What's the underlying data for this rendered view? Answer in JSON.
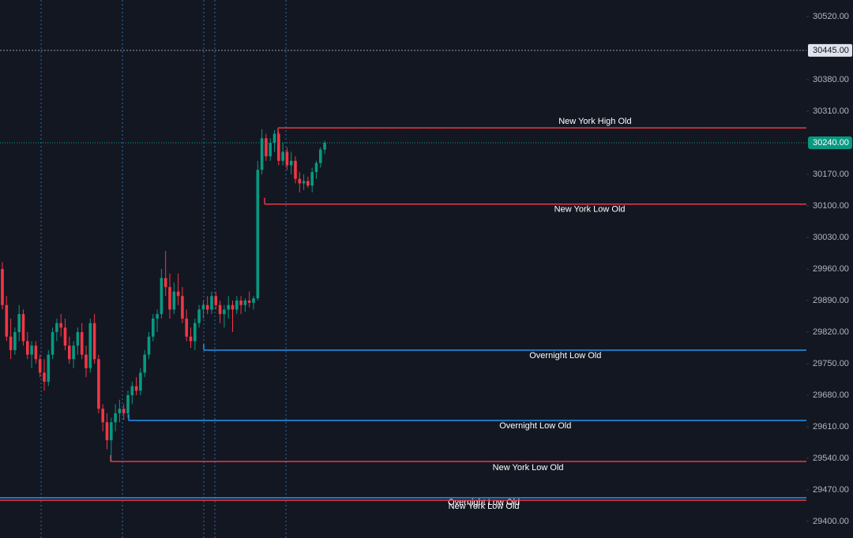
{
  "chart_data": {
    "type": "candlestick",
    "up_color": "#089981",
    "down_color": "#f23645",
    "open": [
      29960,
      29880,
      29810,
      29780,
      29820,
      29860,
      29800,
      29770,
      29790,
      29760,
      29730,
      29710,
      29770,
      29820,
      29840,
      29830,
      29790,
      29760,
      29790,
      29820,
      29770,
      29740,
      29840,
      29760,
      29650,
      29620,
      29580,
      29620,
      29640,
      29650,
      29640,
      29680,
      29700,
      29690,
      29730,
      29770,
      29810,
      29850,
      29860,
      29940,
      29920,
      29870,
      29910,
      29900,
      29850,
      29810,
      29800,
      29840,
      29870,
      29880,
      29870,
      29900,
      29880,
      29860,
      29870,
      29880,
      29870,
      29890,
      29880,
      29890,
      29885,
      29895,
      30180,
      30250,
      30210,
      30240,
      30260,
      30200,
      30220,
      30190,
      30200,
      30160,
      30150,
      30155,
      30145,
      30175,
      30195,
      30225
    ],
    "high": [
      29975,
      29900,
      29850,
      29830,
      29880,
      29870,
      29820,
      29800,
      29800,
      29770,
      29760,
      29780,
      29830,
      29850,
      29860,
      29850,
      29810,
      29800,
      29830,
      29840,
      29790,
      29850,
      29860,
      29770,
      29660,
      29640,
      29630,
      29660,
      29670,
      29660,
      29690,
      29710,
      29720,
      29740,
      29780,
      29820,
      29860,
      29870,
      29960,
      30000,
      29950,
      29930,
      29950,
      29920,
      29870,
      29830,
      29850,
      29880,
      29890,
      29900,
      29910,
      29910,
      29890,
      29880,
      29900,
      29890,
      29900,
      29900,
      29895,
      29910,
      29900,
      30200,
      30270,
      30260,
      30250,
      30268,
      30265,
      30240,
      30230,
      30220,
      30210,
      30175,
      30170,
      30165,
      30185,
      30200,
      30230,
      30245
    ],
    "low": [
      29870,
      29800,
      29760,
      29770,
      29800,
      29790,
      29760,
      29740,
      29750,
      29720,
      29690,
      29700,
      29760,
      29800,
      29810,
      29780,
      29750,
      29740,
      29770,
      29760,
      29720,
      29730,
      29750,
      29640,
      29600,
      29560,
      29533,
      29600,
      29620,
      29625,
      29630,
      29660,
      29680,
      29680,
      29720,
      29760,
      29800,
      29820,
      29850,
      29900,
      29850,
      29860,
      29880,
      29840,
      29800,
      29785,
      29780,
      29830,
      29850,
      29860,
      29860,
      29870,
      29840,
      29830,
      29850,
      29820,
      29860,
      29860,
      29865,
      29875,
      29870,
      29890,
      30170,
      30200,
      30200,
      30220,
      30190,
      30190,
      30180,
      30170,
      30150,
      30130,
      30135,
      30140,
      30130,
      30160,
      30185,
      30215
    ],
    "close": [
      29880,
      29810,
      29780,
      29820,
      29860,
      29800,
      29770,
      29790,
      29760,
      29730,
      29710,
      29770,
      29820,
      29840,
      29830,
      29790,
      29760,
      29790,
      29820,
      29770,
      29740,
      29840,
      29760,
      29650,
      29620,
      29580,
      29620,
      29640,
      29650,
      29640,
      29680,
      29700,
      29690,
      29730,
      29770,
      29810,
      29850,
      29860,
      29940,
      29920,
      29870,
      29910,
      29900,
      29850,
      29810,
      29800,
      29840,
      29870,
      29880,
      29870,
      29900,
      29880,
      29860,
      29870,
      29880,
      29870,
      29890,
      29880,
      29890,
      29885,
      29895,
      30180,
      30250,
      30210,
      30240,
      30260,
      30200,
      30220,
      30190,
      30200,
      30160,
      30150,
      30155,
      30145,
      30175,
      30195,
      30225,
      30240
    ],
    "ylim": [
      29363.25,
      30556.75
    ],
    "yticks": [
      {
        "value": 29400,
        "label": "29400.00"
      },
      {
        "value": 29470,
        "label": "29470.00"
      },
      {
        "value": 29540,
        "label": "29540.00"
      },
      {
        "value": 29610,
        "label": "29610.00"
      },
      {
        "value": 29680,
        "label": "29680.00"
      },
      {
        "value": 29750,
        "label": "29750.00"
      },
      {
        "value": 29820,
        "label": "29820.00"
      },
      {
        "value": 29890,
        "label": "29890.00"
      },
      {
        "value": 29960,
        "label": "29960.00"
      },
      {
        "value": 30030,
        "label": "30030.00"
      },
      {
        "value": 30100,
        "label": "30100.00"
      },
      {
        "value": 30170,
        "label": "30170.00"
      },
      {
        "value": 30310,
        "label": "30310.00"
      },
      {
        "value": 30380,
        "label": "30380.00"
      },
      {
        "value": 30520,
        "label": "30520.00"
      }
    ],
    "price_marker": {
      "value": 30445,
      "label": "30445.00"
    },
    "last_price": {
      "value": 30240,
      "label": "30240.00",
      "color": "#089981"
    },
    "levels": [
      {
        "name": "New York High Old",
        "value": 30273,
        "color": "#f23645"
      },
      {
        "name": "New York Low Old",
        "value": 30104,
        "color": "#f23645"
      },
      {
        "name": "Overnight Low Old",
        "value": 29780,
        "color": "#2196f3"
      },
      {
        "name": "Overnight Low Old",
        "value": 29624,
        "color": "#2196f3"
      },
      {
        "name": "New York Low Old",
        "value": 29533,
        "color": "#f23645"
      },
      {
        "name": "Overnight Low Old",
        "value": 29452.5,
        "color": "#2196f3"
      },
      {
        "name": "New York Low Old",
        "value": 29447,
        "color": "#f23645"
      }
    ]
  }
}
